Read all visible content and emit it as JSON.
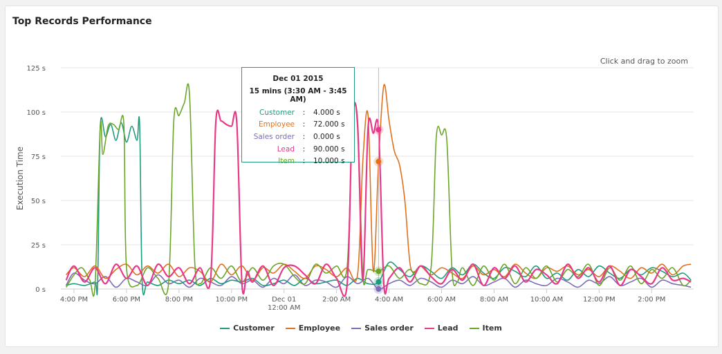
{
  "title": "Top Records Performance",
  "zoom_hint": "Click and drag to zoom",
  "colors": {
    "customer": "#1e9b7c",
    "employee": "#e0701e",
    "sales_order": "#7d6bb8",
    "lead": "#e83889",
    "item": "#6aa52a",
    "grid": "#e6e6e6",
    "axis_text": "#555555"
  },
  "tooltip": {
    "date": "Dec 01 2015",
    "range": "15 mins (3:30 AM - 3:45 AM)",
    "rows": [
      {
        "name": "Customer",
        "value": "4.000 s",
        "color": "#1e9b7c"
      },
      {
        "name": "Employee",
        "value": "72.000 s",
        "color": "#e0701e"
      },
      {
        "name": "Sales order",
        "value": "0.000 s",
        "color": "#7d6bb8"
      },
      {
        "name": "Lead",
        "value": "90.000 s",
        "color": "#e83889"
      },
      {
        "name": "Item",
        "value": "10.000 s",
        "color": "#6aa52a"
      }
    ]
  },
  "chart_data": {
    "type": "line",
    "title": "Top Records Performance",
    "ylabel": "Execution Time",
    "xlabel": "",
    "ylim": [
      0,
      125
    ],
    "yticks": [
      0,
      25,
      50,
      75,
      100,
      125
    ],
    "ytick_labels": [
      "0 s",
      "25 s",
      "50 s",
      "75 s",
      "100 s",
      "125 s"
    ],
    "xlim": [
      15.5,
      39.6
    ],
    "xticks": [
      {
        "h": 16,
        "label": "4:00 PM",
        "label2": ""
      },
      {
        "h": 18,
        "label": "6:00 PM",
        "label2": ""
      },
      {
        "h": 20,
        "label": "8:00 PM",
        "label2": ""
      },
      {
        "h": 22,
        "label": "10:00 PM",
        "label2": ""
      },
      {
        "h": 24,
        "label": "Dec 01",
        "label2": "12:00 AM"
      },
      {
        "h": 26,
        "label": "2:00 AM",
        "label2": ""
      },
      {
        "h": 28,
        "label": "4:00 AM",
        "label2": ""
      },
      {
        "h": 30,
        "label": "6:00 AM",
        "label2": ""
      },
      {
        "h": 32,
        "label": "8:00 AM",
        "label2": ""
      },
      {
        "h": 34,
        "label": "10:00 AM",
        "label2": ""
      },
      {
        "h": 36,
        "label": "12:00 PM",
        "label2": ""
      },
      {
        "h": 38,
        "label": "2:00 PM",
        "label2": ""
      }
    ],
    "x_unit_note": "x values are hours on a continuous clock starting Nov 30",
    "hover_x": 27.6,
    "legend_position": "bottom-center",
    "grid": true,
    "series": [
      {
        "name": "Customer",
        "key": "customer",
        "x": [
          15.7,
          16.0,
          16.4,
          16.8,
          16.9,
          17.0,
          17.2,
          17.4,
          17.6,
          17.8,
          18.0,
          18.2,
          18.4,
          18.5,
          18.6,
          18.8,
          19.2,
          19.6,
          20.0,
          20.4,
          20.8,
          21.2,
          21.6,
          22.0,
          22.4,
          22.8,
          23.2,
          23.6,
          24.0,
          24.4,
          24.8,
          25.2,
          25.6,
          26.0,
          26.4,
          26.8,
          27.2,
          27.6,
          28.0,
          28.4,
          28.8,
          29.2,
          29.6,
          30.0,
          30.4,
          30.8,
          31.2,
          31.6,
          32.0,
          32.4,
          32.8,
          33.2,
          33.6,
          34.0,
          34.4,
          34.8,
          35.2,
          35.6,
          36.0,
          36.4,
          36.8,
          37.2,
          37.6,
          38.0,
          38.4,
          38.8,
          39.2,
          39.5
        ],
        "y": [
          2,
          3,
          2,
          4,
          3,
          92,
          86,
          93,
          84,
          94,
          83,
          92,
          84,
          93,
          3,
          4,
          2,
          5,
          3,
          5,
          2,
          6,
          3,
          5,
          4,
          6,
          2,
          3,
          5,
          2,
          6,
          3,
          4,
          5,
          2,
          6,
          3,
          4,
          15,
          11,
          7,
          13,
          10,
          6,
          12,
          8,
          14,
          9,
          6,
          12,
          10,
          7,
          13,
          6,
          9,
          5,
          11,
          7,
          13,
          9,
          6,
          11,
          8,
          12,
          10,
          7,
          9,
          5
        ]
      },
      {
        "name": "Employee",
        "key": "employee",
        "x": [
          15.7,
          16.0,
          16.4,
          16.8,
          17.2,
          17.6,
          18.0,
          18.4,
          18.8,
          19.2,
          19.6,
          20.0,
          20.4,
          20.8,
          21.2,
          21.6,
          22.0,
          22.4,
          22.8,
          23.2,
          23.6,
          24.0,
          24.4,
          24.8,
          25.2,
          25.6,
          26.0,
          26.4,
          26.8,
          27.0,
          27.2,
          27.4,
          27.6,
          27.8,
          28.0,
          28.2,
          28.4,
          28.6,
          28.8,
          29.0,
          29.2,
          29.6,
          30.0,
          30.4,
          30.8,
          31.2,
          31.6,
          32.0,
          32.4,
          32.8,
          33.2,
          33.6,
          34.0,
          34.4,
          34.8,
          35.2,
          35.6,
          36.0,
          36.4,
          36.8,
          37.2,
          37.6,
          38.0,
          38.4,
          38.8,
          39.2,
          39.5
        ],
        "y": [
          8,
          12,
          7,
          13,
          6,
          11,
          14,
          8,
          13,
          9,
          14,
          7,
          12,
          10,
          4,
          14,
          8,
          13,
          5,
          12,
          9,
          14,
          10,
          6,
          13,
          11,
          7,
          12,
          8,
          72,
          98,
          10,
          72,
          115,
          95,
          78,
          70,
          50,
          14,
          10,
          13,
          8,
          12,
          9,
          6,
          13,
          8,
          11,
          7,
          14,
          9,
          6,
          12,
          10,
          13,
          8,
          11,
          7,
          13,
          10,
          6,
          12,
          9,
          14,
          8,
          13,
          14
        ]
      },
      {
        "name": "Sales order",
        "key": "sales_order",
        "x": [
          15.7,
          16.0,
          16.4,
          16.8,
          17.2,
          17.6,
          18.0,
          18.4,
          18.8,
          19.2,
          19.6,
          20.0,
          20.4,
          20.8,
          21.2,
          21.6,
          22.0,
          22.4,
          22.8,
          23.2,
          23.6,
          24.0,
          24.4,
          24.8,
          25.2,
          25.6,
          26.0,
          26.4,
          26.8,
          27.2,
          27.6,
          28.0,
          28.4,
          28.8,
          29.2,
          29.6,
          30.0,
          30.4,
          30.8,
          31.2,
          31.6,
          32.0,
          32.4,
          32.8,
          33.2,
          33.6,
          34.0,
          34.4,
          34.8,
          35.2,
          35.6,
          36.0,
          36.4,
          36.8,
          37.2,
          37.6,
          38.0,
          38.4,
          38.8,
          39.2,
          39.5
        ],
        "y": [
          2,
          9,
          5,
          3,
          7,
          1,
          6,
          4,
          2,
          8,
          3,
          5,
          1,
          6,
          4,
          2,
          7,
          3,
          5,
          1,
          6,
          3,
          8,
          2,
          5,
          4,
          1,
          7,
          3,
          6,
          0,
          3,
          5,
          2,
          6,
          4,
          1,
          5,
          3,
          7,
          2,
          4,
          6,
          1,
          5,
          3,
          2,
          6,
          4,
          1,
          5,
          3,
          7,
          2,
          4,
          6,
          1,
          5,
          3,
          2,
          1
        ]
      },
      {
        "name": "Lead",
        "key": "lead",
        "x": [
          15.7,
          16.0,
          16.4,
          16.8,
          17.2,
          17.6,
          18.0,
          18.4,
          18.8,
          19.2,
          19.6,
          20.0,
          20.4,
          20.8,
          21.2,
          21.4,
          21.6,
          21.8,
          22.0,
          22.2,
          22.4,
          22.6,
          22.8,
          23.2,
          23.6,
          24.0,
          24.4,
          24.8,
          25.2,
          25.6,
          26.0,
          26.4,
          26.6,
          26.8,
          27.0,
          27.2,
          27.4,
          27.6,
          27.8,
          28.0,
          28.4,
          28.8,
          29.2,
          29.6,
          30.0,
          30.4,
          30.8,
          31.2,
          31.6,
          32.0,
          32.4,
          32.8,
          33.2,
          33.6,
          34.0,
          34.4,
          34.8,
          35.2,
          35.6,
          36.0,
          36.4,
          36.8,
          37.2,
          37.6,
          38.0,
          38.4,
          38.8,
          39.2,
          39.5
        ],
        "y": [
          5,
          13,
          4,
          12,
          3,
          14,
          6,
          13,
          2,
          14,
          7,
          12,
          3,
          12,
          5,
          94,
          95,
          93,
          92,
          94,
          2,
          10,
          4,
          13,
          2,
          12,
          13,
          8,
          3,
          14,
          6,
          2,
          95,
          93,
          5,
          91,
          88,
          90,
          3,
          6,
          12,
          4,
          13,
          7,
          3,
          11,
          5,
          14,
          2,
          12,
          6,
          13,
          4,
          11,
          8,
          3,
          14,
          6,
          12,
          4,
          13,
          2,
          11,
          7,
          3,
          12,
          5,
          6,
          4
        ]
      },
      {
        "name": "Item",
        "key": "item",
        "x": [
          15.7,
          16.0,
          16.3,
          16.6,
          16.8,
          17.0,
          17.1,
          17.3,
          17.5,
          17.7,
          17.9,
          18.0,
          18.4,
          18.8,
          19.2,
          19.6,
          19.8,
          20.0,
          20.2,
          20.4,
          20.6,
          20.8,
          21.2,
          21.6,
          22.0,
          22.4,
          22.8,
          23.2,
          23.6,
          24.0,
          24.4,
          24.8,
          25.2,
          25.6,
          26.0,
          26.4,
          26.6,
          26.8,
          27.0,
          27.2,
          27.6,
          28.0,
          28.4,
          28.8,
          29.2,
          29.6,
          29.8,
          30.0,
          30.2,
          30.4,
          30.6,
          30.8,
          31.2,
          31.6,
          32.0,
          32.4,
          32.8,
          33.2,
          33.6,
          34.0,
          34.4,
          34.8,
          35.2,
          35.6,
          36.0,
          36.4,
          36.8,
          37.2,
          37.6,
          38.0,
          38.4,
          38.8,
          39.2,
          39.5
        ],
        "y": [
          1,
          8,
          12,
          5,
          2,
          92,
          76,
          92,
          93,
          90,
          93,
          12,
          2,
          12,
          6,
          3,
          95,
          98,
          105,
          110,
          15,
          3,
          12,
          6,
          13,
          4,
          12,
          5,
          13,
          14,
          7,
          3,
          14,
          9,
          13,
          12,
          92,
          96,
          8,
          11,
          10,
          13,
          6,
          11,
          3,
          12,
          86,
          87,
          84,
          10,
          4,
          12,
          2,
          13,
          5,
          14,
          3,
          12,
          6,
          13,
          4,
          11,
          7,
          14,
          2,
          12,
          5,
          13,
          3,
          11,
          6,
          12,
          2,
          5
        ]
      }
    ]
  },
  "legend": [
    {
      "name": "Customer",
      "color": "#1e9b7c"
    },
    {
      "name": "Employee",
      "color": "#e0701e"
    },
    {
      "name": "Sales order",
      "color": "#7d6bb8"
    },
    {
      "name": "Lead",
      "color": "#e83889"
    },
    {
      "name": "Item",
      "color": "#6aa52a"
    }
  ]
}
